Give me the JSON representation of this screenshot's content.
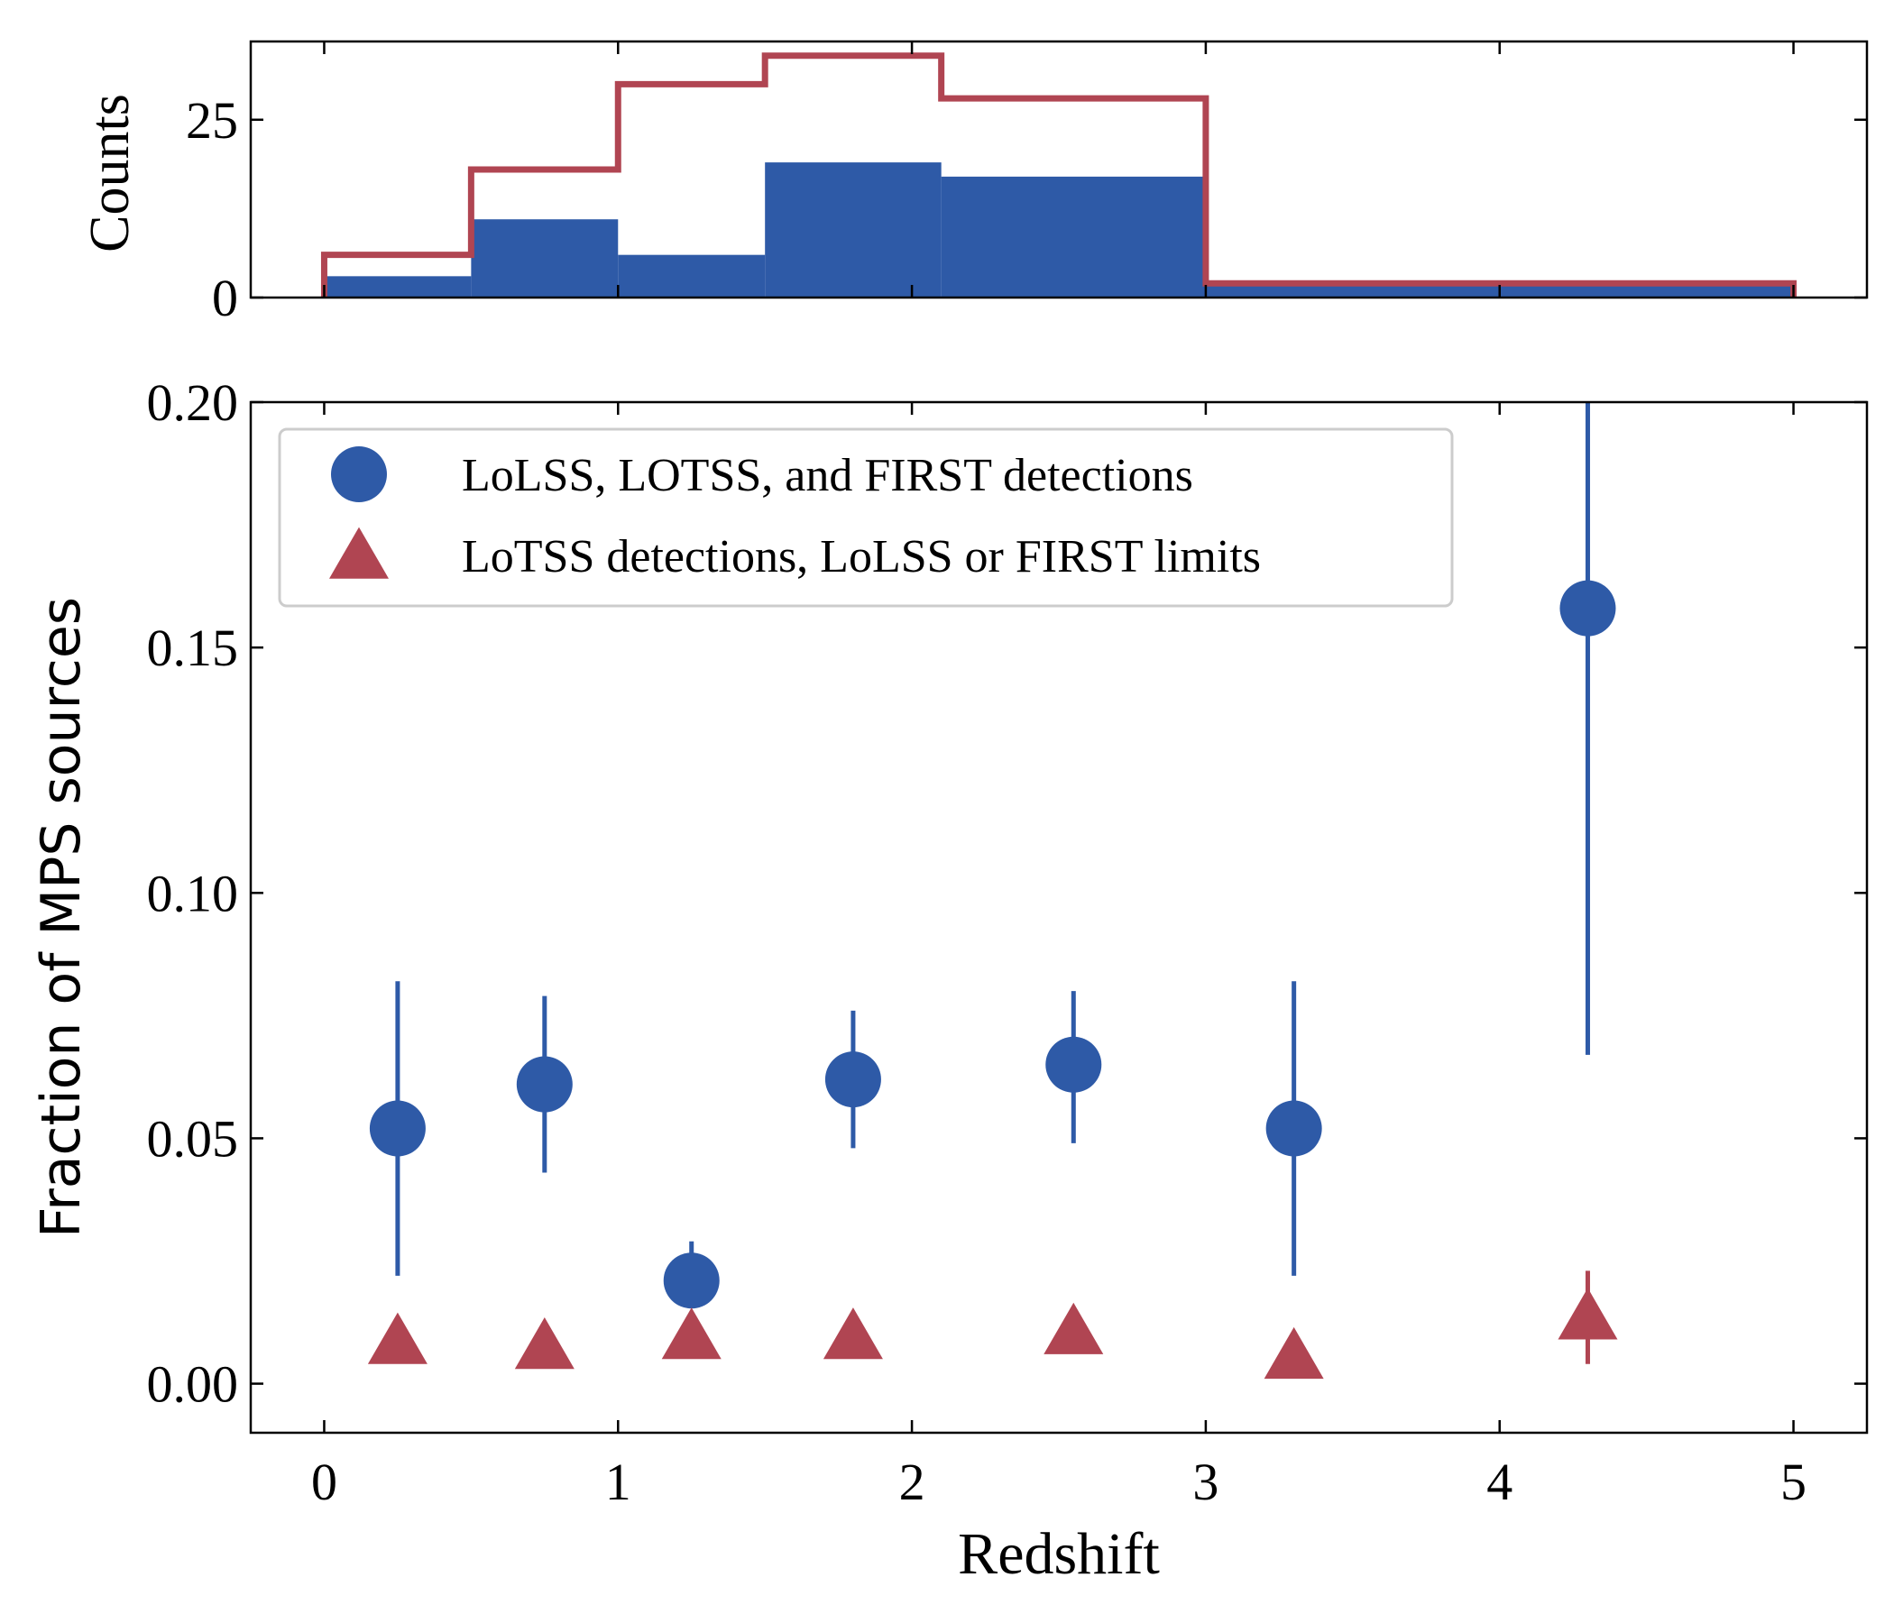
{
  "colors": {
    "blue": "#2e5aa7",
    "red": "#b04552",
    "axis": "#000000"
  },
  "chart_data": [
    {
      "type": "histogram",
      "panel": "top",
      "ylabel": "Counts",
      "xlim": [
        -0.25,
        5.25
      ],
      "ylim": [
        0,
        36
      ],
      "yticks": [
        0,
        25
      ],
      "ytick_labels": [
        "0",
        "25"
      ],
      "bin_edges": [
        0,
        0.5,
        1.0,
        1.5,
        2.1,
        3.0,
        5.0
      ],
      "series": [
        {
          "name": "LoLSS, LOTSS, and FIRST detections",
          "style": "filled",
          "color": "#2e5aa7",
          "values": [
            3,
            11,
            6,
            19,
            17,
            2
          ]
        },
        {
          "name": "LoTSS detections, LoLSS or FIRST limits",
          "style": "step",
          "color": "#b04552",
          "values": [
            6,
            18,
            30,
            34,
            28,
            2
          ]
        }
      ]
    },
    {
      "type": "scatter",
      "panel": "bottom",
      "xlabel": "Redshift",
      "ylabel": "Fraction of MPS sources",
      "xlim": [
        -0.25,
        5.25
      ],
      "ylim": [
        -0.01,
        0.2
      ],
      "xticks": [
        0,
        1,
        2,
        3,
        4,
        5
      ],
      "xtick_labels": [
        "0",
        "1",
        "2",
        "3",
        "4",
        "5"
      ],
      "yticks": [
        0.0,
        0.05,
        0.1,
        0.15,
        0.2
      ],
      "ytick_labels": [
        "0.00",
        "0.05",
        "0.10",
        "0.15",
        "0.20"
      ],
      "legend_position": "top-left",
      "series": [
        {
          "name": "LoLSS, LOTSS, and FIRST detections",
          "marker": "circle",
          "color": "#2e5aa7",
          "x": [
            0.25,
            0.75,
            1.25,
            1.8,
            2.55,
            3.3,
            4.3
          ],
          "y": [
            0.052,
            0.061,
            0.021,
            0.062,
            0.065,
            0.052,
            0.158
          ],
          "err_low": [
            0.022,
            0.043,
            0.021,
            0.048,
            0.049,
            0.022,
            0.067
          ],
          "err_high": [
            0.082,
            0.079,
            0.029,
            0.076,
            0.08,
            0.082,
            0.2
          ]
        },
        {
          "name": "LoTSS detections, LoLSS or FIRST limits",
          "marker": "triangle",
          "color": "#b04552",
          "x": [
            0.25,
            0.75,
            1.25,
            1.8,
            2.55,
            3.3,
            4.3
          ],
          "y": [
            0.008,
            0.007,
            0.009,
            0.009,
            0.01,
            0.005,
            0.013
          ],
          "err_low": [
            null,
            null,
            null,
            null,
            null,
            null,
            0.004
          ],
          "err_high": [
            null,
            null,
            null,
            null,
            null,
            null,
            0.023
          ]
        }
      ]
    }
  ]
}
